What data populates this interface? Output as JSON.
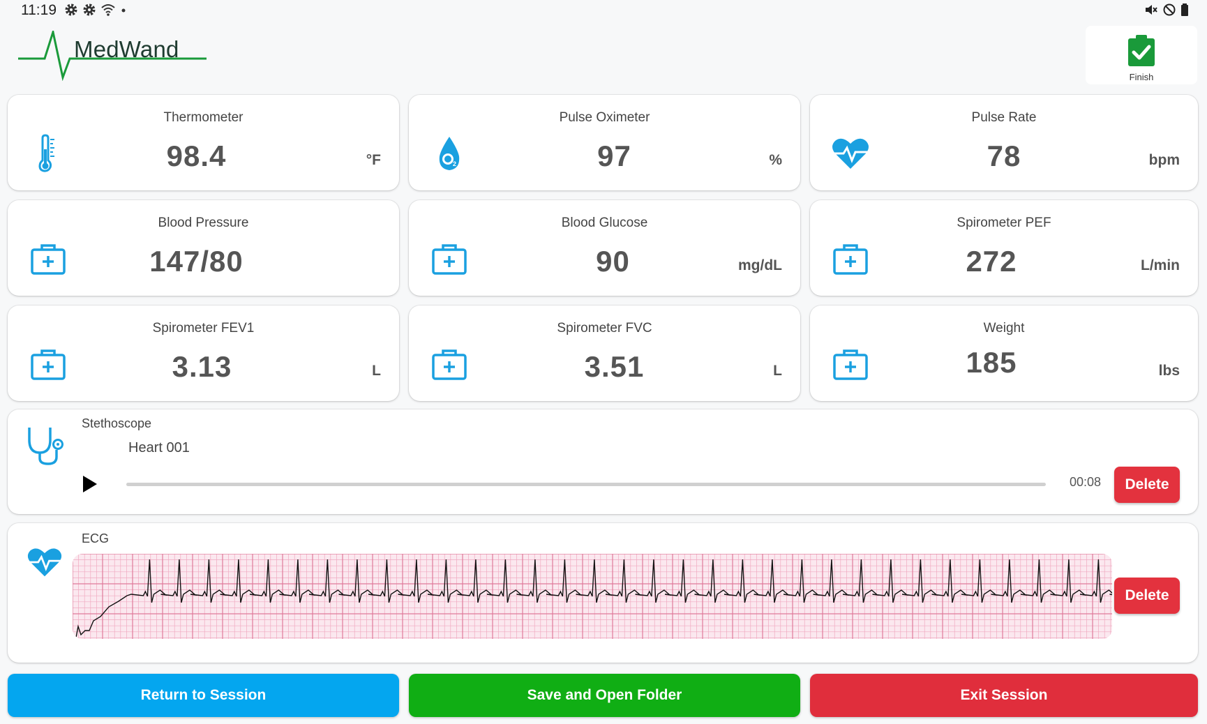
{
  "status_bar": {
    "time": "11:19"
  },
  "header": {
    "logo_text": "MedWand",
    "finish_label": "Finish"
  },
  "colors": {
    "accent_blue": "#1aa0e0",
    "brand_green": "#1a9a3a",
    "delete_red": "#e3323e",
    "return_blue": "#04a6ef",
    "save_green": "#10ae14",
    "exit_red": "#e02e3c",
    "ecg_grid": "#e07a9a"
  },
  "cards": [
    {
      "title": "Thermometer",
      "value": "98.4",
      "unit": "°F",
      "icon": "thermometer-icon"
    },
    {
      "title": "Pulse Oximeter",
      "value": "97",
      "unit": "%",
      "icon": "oxygen-drop-icon"
    },
    {
      "title": "Pulse Rate",
      "value": "78",
      "unit": "bpm",
      "icon": "heart-pulse-icon"
    },
    {
      "title": "Blood Pressure",
      "value": "147/80",
      "unit": "",
      "icon": "medical-kit-icon"
    },
    {
      "title": "Blood Glucose",
      "value": "90",
      "unit": "mg/dL",
      "icon": "medical-kit-icon"
    },
    {
      "title": "Spirometer PEF",
      "value": "272",
      "unit": "L/min",
      "icon": "medical-kit-icon"
    },
    {
      "title": "Spirometer FEV1",
      "value": "3.13",
      "unit": "L",
      "icon": "medical-kit-icon"
    },
    {
      "title": "Spirometer FVC",
      "value": "3.51",
      "unit": "L",
      "icon": "medical-kit-icon"
    },
    {
      "title": "Weight",
      "value": "185",
      "unit": "lbs",
      "icon": "medical-kit-icon"
    }
  ],
  "stethoscope": {
    "title": "Stethoscope",
    "recording_name": "Heart 001",
    "duration": "00:08",
    "progress": 0,
    "delete_label": "Delete"
  },
  "ecg": {
    "title": "ECG",
    "delete_label": "Delete"
  },
  "bottom_buttons": {
    "return_label": "Return to Session",
    "save_label": "Save and Open Folder",
    "exit_label": "Exit Session"
  }
}
